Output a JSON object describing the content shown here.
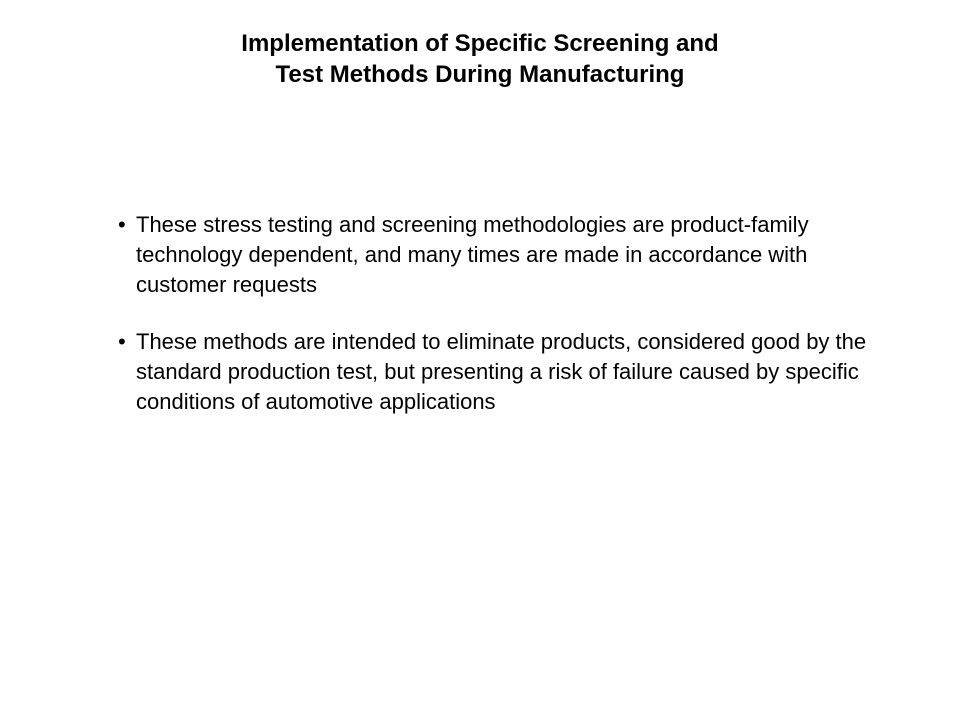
{
  "slide": {
    "title_line1": "Implementation of Specific Screening and",
    "title_line2": "Test Methods During Manufacturing",
    "bullets": [
      "These stress testing and screening methodologies are product-family technology dependent, and many times are made in accordance with customer requests",
      "These methods are intended to eliminate products, considered good by the standard production test, but presenting a risk of failure caused by specific conditions of automotive applications"
    ]
  },
  "styling": {
    "background_color": "#ffffff",
    "text_color": "#000000",
    "title_fontsize": 24,
    "title_fontweight": "bold",
    "body_fontsize": 22,
    "font_family": "Arial"
  }
}
